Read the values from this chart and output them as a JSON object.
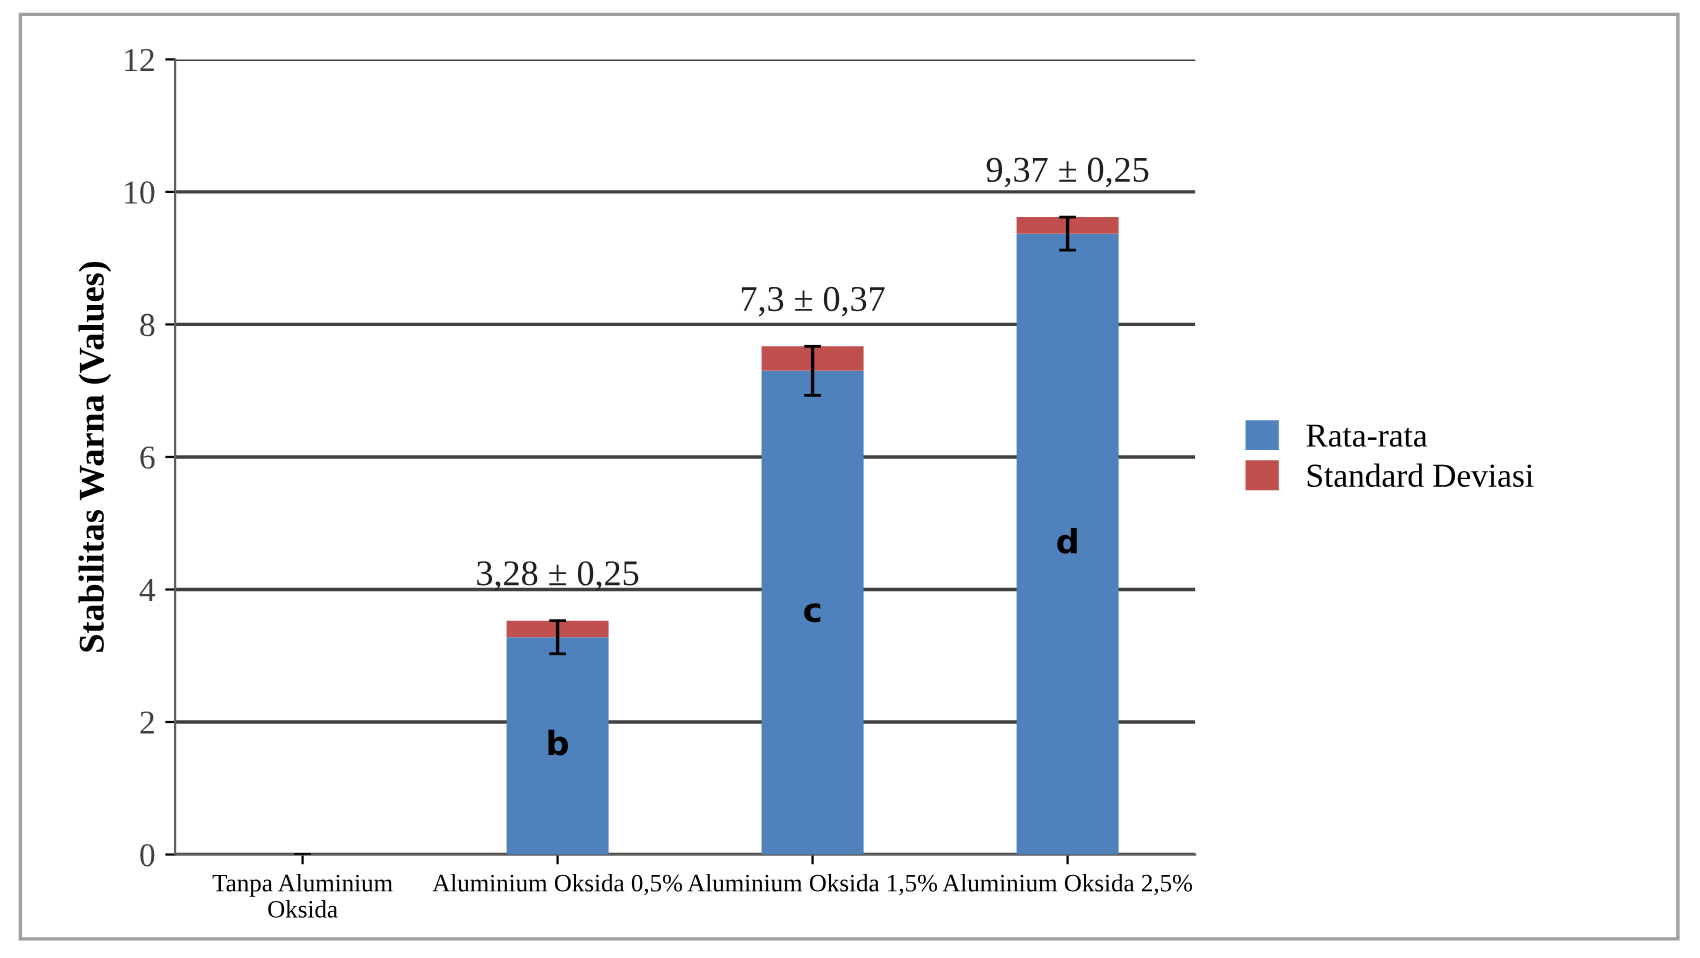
{
  "chart_data": {
    "type": "bar",
    "stacked": true,
    "ylabel": "Stabilitas Warna (Values)",
    "categories": [
      "Tanpa Aluminium\nOksida",
      "Aluminium Oksida 0,5%",
      "Aluminium Oksida 1,5%",
      "Aluminium Oksida 2,5%"
    ],
    "series": [
      {
        "name": "Rata-rata",
        "color": "#4f81bd",
        "values": [
          0,
          3.28,
          7.3,
          9.37
        ],
        "value_labels": [
          null,
          "b",
          "c",
          "d"
        ],
        "errors": [
          0,
          0.25,
          0.37,
          0.25
        ]
      },
      {
        "name": "Standard Deviasi",
        "color": "#c0504d",
        "values": [
          0,
          0.25,
          0.37,
          0.25
        ]
      }
    ],
    "ylim": [
      0,
      12
    ],
    "yticks": [
      0,
      2,
      4,
      6,
      8,
      10,
      12
    ],
    "grid": "y",
    "legend": "right",
    "annotations": [
      {
        "text": "3,28 ± 0,25",
        "x": "Aluminium Oksida 0,5%",
        "y": 3.53
      },
      {
        "text": "7,3 ± 0,37",
        "x": "Aluminium Oksida 1,5%",
        "y": 7.67
      },
      {
        "text": "9,37 ± 0,25",
        "x": "Aluminium Oksida 2,5%",
        "y": 9.62
      }
    ]
  }
}
